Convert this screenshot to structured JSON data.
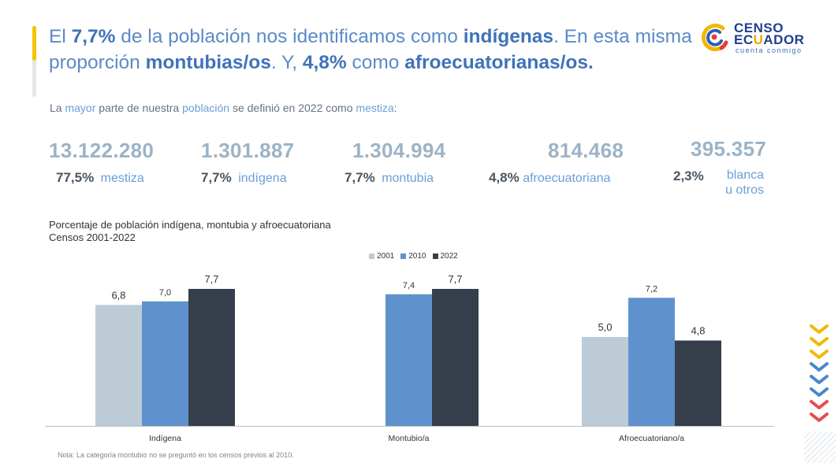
{
  "headline": {
    "p1": "El ",
    "b1": "7,7%",
    "p2": " de la población nos identificamos como ",
    "b2": "indígenas",
    "p3": ". En esta misma proporción ",
    "b3": "montubias/os",
    "p4": ". Y, ",
    "b4": "4,8%",
    "p5": " como ",
    "b5": "afroecuatorianas/os."
  },
  "logo": {
    "line1": "CENSO",
    "line2a": "EC",
    "line2b": "U",
    "line2c": "ADOR",
    "tagline": "cuenta conmigo"
  },
  "intro": {
    "a": "La ",
    "b": "mayor",
    "c": " parte de nuestra ",
    "d": "población",
    "e": " se definió en 2022 como ",
    "f": "mestiza",
    "g": ":"
  },
  "stats": [
    {
      "number": "13.122.280",
      "percent": "77,5%",
      "label": "mestiza"
    },
    {
      "number": "1.301.887",
      "percent": "7,7%",
      "label": "indígena"
    },
    {
      "number": "1.304.994",
      "percent": "7,7%",
      "label": "montubia"
    },
    {
      "number": "814.468",
      "percent": "4,8%",
      "label": "afroecuatoriana"
    },
    {
      "number": "395.357",
      "percent": "2,3%",
      "label": "blanca",
      "label2": "u otros"
    }
  ],
  "chart_title": {
    "line1": "Porcentaje de población indígena, montubia y afroecuatoriana",
    "line2": "Censos 2001-2022"
  },
  "note": "Nota: La categoría montubio no se preguntó en los censos previos al 2010.",
  "chart_data": {
    "type": "bar",
    "categories": [
      "Indígena",
      "Montubio/a",
      "Afroecuatoriano/a"
    ],
    "series": [
      {
        "name": "2001",
        "color": "#bccbd6",
        "values": [
          6.8,
          null,
          5.0
        ],
        "labels": [
          "6,8",
          "",
          "5,0"
        ]
      },
      {
        "name": "2010",
        "color": "#5f92cc",
        "values": [
          7.0,
          7.4,
          7.2
        ],
        "labels": [
          "7,0",
          "7,4",
          "7,2"
        ]
      },
      {
        "name": "2022",
        "color": "#343f4b",
        "values": [
          7.7,
          7.7,
          4.8
        ],
        "labels": [
          "7,7",
          "7,7",
          "4,8"
        ]
      }
    ],
    "legend_position": "top-center",
    "grid": false
  }
}
